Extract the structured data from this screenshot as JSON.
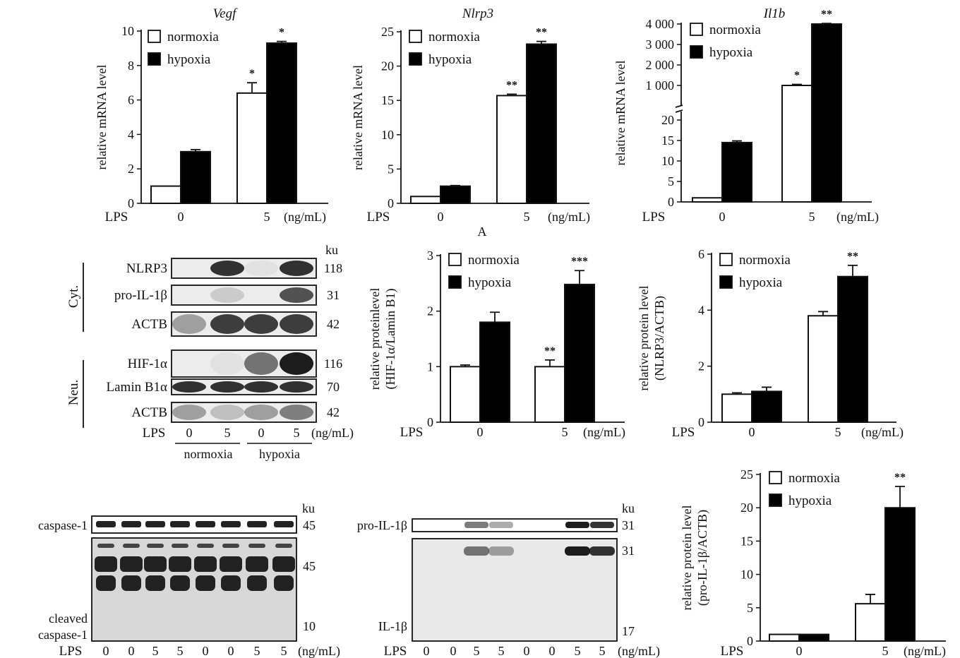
{
  "caption_letter": "A",
  "lps_label": "LPS",
  "unit_label": "(ng/mL)",
  "ku_label": "ku",
  "legend": {
    "normoxia": "normoxia",
    "hypoxia": "hypoxia"
  },
  "colors": {
    "normoxia": "#ffffff",
    "hypoxia": "#000000"
  },
  "chart_data": [
    {
      "id": "vegf",
      "type": "bar",
      "title": "Vegf",
      "ylabel": [
        "relative mRNA level"
      ],
      "categories": [
        "0",
        "5"
      ],
      "ylim": [
        0,
        10
      ],
      "yticks": [
        "0",
        "2",
        "4",
        "6",
        "8",
        "10"
      ],
      "series": [
        {
          "name": "normoxia",
          "values": [
            1.0,
            6.4
          ],
          "errors": [
            0,
            0.6
          ]
        },
        {
          "name": "hypoxia",
          "values": [
            3.0,
            9.3
          ],
          "errors": [
            0.12,
            0.1
          ]
        }
      ],
      "marks": [
        "",
        "",
        "*",
        "*"
      ]
    },
    {
      "id": "nlrp3",
      "type": "bar",
      "title": "Nlrp3",
      "ylabel": [
        "relative mRNA level"
      ],
      "categories": [
        "0",
        "5"
      ],
      "ylim": [
        0,
        25
      ],
      "yticks": [
        "0",
        "5",
        "10",
        "15",
        "20",
        "25"
      ],
      "series": [
        {
          "name": "normoxia",
          "values": [
            1.0,
            15.7
          ],
          "errors": [
            0,
            0.2
          ]
        },
        {
          "name": "hypoxia",
          "values": [
            2.5,
            23.2
          ],
          "errors": [
            0.1,
            0.4
          ]
        }
      ],
      "marks": [
        "",
        "",
        "**",
        "**"
      ]
    },
    {
      "id": "il1b",
      "type": "bar",
      "title": "Il1b",
      "ylabel": [
        "relative mRNA level"
      ],
      "categories": [
        "0",
        "5"
      ],
      "broken_axis": true,
      "yticks_low": [
        "0",
        "5",
        "10",
        "15",
        "20"
      ],
      "yticks_high": [
        "1 000",
        "2 000",
        "3 000",
        "4 000"
      ],
      "series": [
        {
          "name": "normoxia",
          "values": [
            1.0,
            1000
          ],
          "errors": [
            0,
            50
          ]
        },
        {
          "name": "hypoxia",
          "values": [
            14.5,
            4000
          ],
          "errors": [
            0.4,
            30
          ]
        }
      ],
      "marks": [
        "",
        "",
        "*",
        "**"
      ]
    },
    {
      "id": "hif",
      "type": "bar",
      "title": "",
      "ylabel": [
        "relative proteinlevel",
        "(HIF-1α/Lamin B1)"
      ],
      "categories": [
        "0",
        "5"
      ],
      "ylim": [
        0,
        3
      ],
      "yticks": [
        "0",
        "1",
        "2",
        "3"
      ],
      "series": [
        {
          "name": "normoxia",
          "values": [
            1.0,
            1.0
          ],
          "errors": [
            0.03,
            0.12
          ]
        },
        {
          "name": "hypoxia",
          "values": [
            1.8,
            2.48
          ],
          "errors": [
            0.18,
            0.25
          ]
        }
      ],
      "marks": [
        "",
        "",
        "**",
        "***"
      ]
    },
    {
      "id": "nlrp3p",
      "type": "bar",
      "title": "",
      "ylabel": [
        "relative protein level",
        "(NLRP3/ACTB)"
      ],
      "categories": [
        "0",
        "5"
      ],
      "ylim": [
        0,
        6
      ],
      "yticks": [
        "0",
        "2",
        "4",
        "6"
      ],
      "series": [
        {
          "name": "normoxia",
          "values": [
            1.0,
            3.8
          ],
          "errors": [
            0.05,
            0.15
          ]
        },
        {
          "name": "hypoxia",
          "values": [
            1.1,
            5.2
          ],
          "errors": [
            0.15,
            0.4
          ]
        }
      ],
      "marks": [
        "",
        "",
        "",
        "**"
      ]
    },
    {
      "id": "il1bp",
      "type": "bar",
      "title": "",
      "ylabel": [
        "relative protein level",
        "(pro-IL-1β/ACTB)"
      ],
      "categories": [
        "0",
        "5"
      ],
      "ylim": [
        0,
        25
      ],
      "yticks": [
        "0",
        "5",
        "10",
        "15",
        "20",
        "25"
      ],
      "series": [
        {
          "name": "normoxia",
          "values": [
            1.0,
            5.6
          ],
          "errors": [
            0,
            1.4
          ]
        },
        {
          "name": "hypoxia",
          "values": [
            1.0,
            20.0
          ],
          "errors": [
            0,
            3.2
          ]
        }
      ],
      "marks": [
        "",
        "",
        "",
        "**"
      ]
    }
  ],
  "blot_mid": {
    "cyt_label": "Cyt.",
    "neu_label": "Neu.",
    "rows": [
      {
        "label": "NLRP3",
        "ku": "118",
        "lanes": [
          0.0,
          0.85,
          0.05,
          0.85
        ]
      },
      {
        "label": "pro-IL-1β",
        "ku": "31",
        "lanes": [
          0.0,
          0.15,
          0.0,
          0.7
        ]
      },
      {
        "label": "ACTB",
        "ku": "42",
        "lanes": [
          0.35,
          0.8,
          0.8,
          0.8
        ]
      },
      {
        "label": "HIF-1α",
        "ku": "116",
        "lanes": [
          0.0,
          0.05,
          0.55,
          0.95
        ]
      },
      {
        "label": "Lamin B1α",
        "ku": "70",
        "lanes": [
          0.85,
          0.85,
          0.85,
          0.85
        ]
      },
      {
        "label": "ACTB",
        "ku": "42",
        "lanes": [
          0.35,
          0.2,
          0.35,
          0.5
        ]
      }
    ],
    "lps": [
      "0",
      "5",
      "0",
      "5"
    ],
    "groups": [
      "normoxia",
      "hypoxia"
    ]
  },
  "blot_bl": {
    "top_label": "caspase-1",
    "top_ku": "45",
    "bottom_ku_top": "45",
    "bottom_ku_bottom": "10",
    "cleaved_label_1": "cleaved",
    "cleaved_label_2": "caspase-1",
    "lps": [
      "0",
      "0",
      "5",
      "5",
      "0",
      "0",
      "5",
      "5"
    ]
  },
  "blot_bc": {
    "top_label": "pro-IL-1β",
    "top_ku": "31",
    "bottom_ku_top": "31",
    "bottom_ku_bottom": "17",
    "bottom_label": "IL-1β",
    "lps": [
      "0",
      "0",
      "5",
      "5",
      "0",
      "0",
      "5",
      "5"
    ]
  }
}
